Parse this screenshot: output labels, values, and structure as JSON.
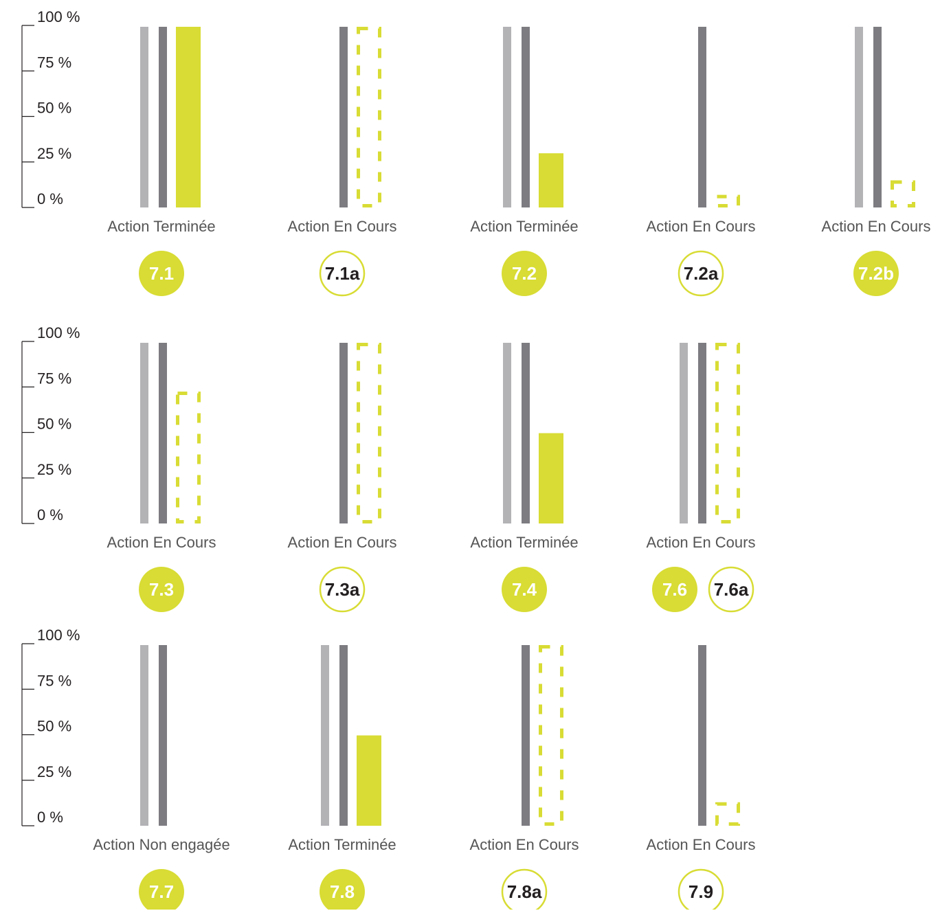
{
  "colors": {
    "reference_bar": "#b3b3b6",
    "target_bar": "#7d7c81",
    "progress": "#d8dc34",
    "axis": "#231f20",
    "label_text": "#555555",
    "badge_text_dark": "#231f20",
    "badge_text_light": "#ffffff"
  },
  "chart_data": [
    {
      "type": "bar",
      "row": 1,
      "ylim": [
        0,
        100
      ],
      "y_ticks": [
        "100 %",
        "75 %",
        "50 %",
        "25 %",
        "0 %"
      ],
      "grid": false,
      "series_styles": {
        "reference": "solid light grey",
        "target": "solid dark grey",
        "progress": "solid yellow-green, or dashed outline when estimated"
      },
      "groups": [
        {
          "label": "Action Terminée",
          "bars": {
            "reference": 100,
            "target": 100,
            "progress": 100,
            "progress_style": "solid"
          },
          "badges": [
            {
              "text": "7.1",
              "style": "filled"
            }
          ]
        },
        {
          "label": "Action En Cours",
          "bars": {
            "reference": null,
            "target": 100,
            "progress": 100,
            "progress_style": "dashed"
          },
          "badges": [
            {
              "text": "7.1a",
              "style": "outline"
            }
          ]
        },
        {
          "label": "Action Terminée",
          "bars": {
            "reference": 100,
            "target": 100,
            "progress": 30,
            "progress_style": "solid"
          },
          "badges": [
            {
              "text": "7.2",
              "style": "filled"
            }
          ]
        },
        {
          "label": "Action En Cours",
          "bars": {
            "reference": null,
            "target": 100,
            "progress": 7,
            "progress_style": "dashed"
          },
          "badges": [
            {
              "text": "7.2a",
              "style": "outline"
            }
          ]
        },
        {
          "label": "Action En Cours",
          "bars": {
            "reference": 100,
            "target": 100,
            "progress": 15,
            "progress_style": "dashed"
          },
          "badges": [
            {
              "text": "7.2b",
              "style": "filled"
            }
          ]
        }
      ]
    },
    {
      "type": "bar",
      "row": 2,
      "ylim": [
        0,
        100
      ],
      "y_ticks": [
        "100 %",
        "75 %",
        "50 %",
        "25 %",
        "0 %"
      ],
      "grid": false,
      "groups": [
        {
          "label": "Action En Cours",
          "bars": {
            "reference": 100,
            "target": 100,
            "progress": 73,
            "progress_style": "dashed"
          },
          "badges": [
            {
              "text": "7.3",
              "style": "filled"
            }
          ]
        },
        {
          "label": "Action En Cours",
          "bars": {
            "reference": null,
            "target": 100,
            "progress": 100,
            "progress_style": "dashed"
          },
          "badges": [
            {
              "text": "7.3a",
              "style": "outline"
            }
          ]
        },
        {
          "label": "Action Terminée",
          "bars": {
            "reference": 100,
            "target": 100,
            "progress": 50,
            "progress_style": "solid"
          },
          "badges": [
            {
              "text": "7.4",
              "style": "filled"
            }
          ]
        },
        {
          "label": "Action En Cours",
          "bars": {
            "reference": 100,
            "target": 100,
            "progress": 100,
            "progress_style": "dashed"
          },
          "badges": [
            {
              "text": "7.6",
              "style": "filled"
            },
            {
              "text": "7.6a",
              "style": "outline"
            }
          ]
        }
      ]
    },
    {
      "type": "bar",
      "row": 3,
      "ylim": [
        0,
        100
      ],
      "y_ticks": [
        "100 %",
        "75 %",
        "50 %",
        "25 %",
        "0 %"
      ],
      "grid": false,
      "groups": [
        {
          "label": "Action Non engagée",
          "bars": {
            "reference": 100,
            "target": 100,
            "progress": null,
            "progress_style": "none"
          },
          "badges": [
            {
              "text": "7.7",
              "style": "filled"
            }
          ]
        },
        {
          "label": "Action Terminée",
          "bars": {
            "reference": 100,
            "target": 100,
            "progress": 50,
            "progress_style": "solid"
          },
          "badges": [
            {
              "text": "7.8",
              "style": "filled"
            }
          ]
        },
        {
          "label": "Action En Cours",
          "bars": {
            "reference": null,
            "target": 100,
            "progress": 100,
            "progress_style": "dashed"
          },
          "badges": [
            {
              "text": "7.8a",
              "style": "outline"
            }
          ]
        },
        {
          "label": "Action En Cours",
          "bars": {
            "reference": null,
            "target": 100,
            "progress": 13,
            "progress_style": "dashed"
          },
          "badges": [
            {
              "text": "7.9",
              "style": "outline"
            }
          ]
        }
      ]
    }
  ]
}
